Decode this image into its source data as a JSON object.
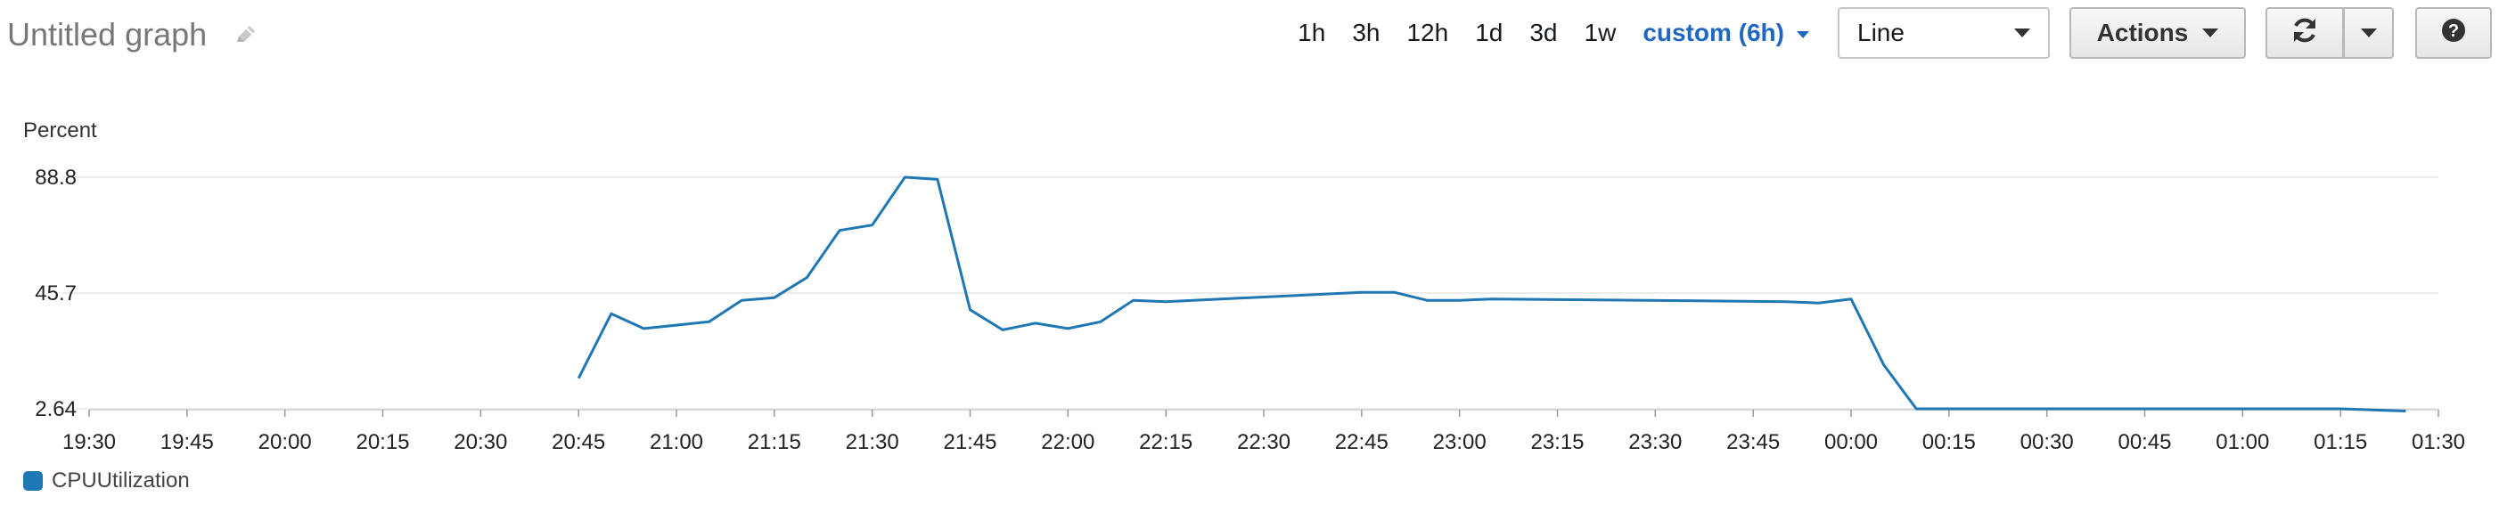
{
  "header": {
    "title": "Untitled graph",
    "edit_icon": "pencil-icon"
  },
  "toolbar": {
    "ranges": [
      "1h",
      "3h",
      "12h",
      "1d",
      "3d",
      "1w"
    ],
    "custom_range": "custom (6h)",
    "chart_type": "Line",
    "actions_label": "Actions",
    "refresh_icon": "refresh-icon",
    "help_icon": "question-icon"
  },
  "colors": {
    "series": "#1f77b4",
    "accent": "#1f67c2",
    "grid": "#e6e6e6"
  },
  "chart_data": {
    "type": "line",
    "ylabel": "Percent",
    "y_ticks": [
      2.64,
      45.7,
      88.8
    ],
    "ylim": [
      2.64,
      88.8
    ],
    "x_ticks": [
      "19:30",
      "19:45",
      "20:00",
      "20:15",
      "20:30",
      "20:45",
      "21:00",
      "21:15",
      "21:30",
      "21:45",
      "22:00",
      "22:15",
      "22:30",
      "22:45",
      "23:00",
      "23:15",
      "23:30",
      "23:45",
      "00:00",
      "00:15",
      "00:30",
      "00:45",
      "01:00",
      "01:15",
      "01:30"
    ],
    "xlim": [
      "19:30",
      "01:30"
    ],
    "grid": true,
    "legend": "bottom-left",
    "series": [
      {
        "name": "CPUUtilization",
        "x": [
          "20:45",
          "20:50",
          "20:55",
          "21:05",
          "21:10",
          "21:15",
          "21:20",
          "21:25",
          "21:30",
          "21:35",
          "21:40",
          "21:45",
          "21:50",
          "21:55",
          "22:00",
          "22:05",
          "22:10",
          "22:15",
          "22:45",
          "22:50",
          "22:55",
          "23:00",
          "23:05",
          "23:50",
          "23:55",
          "00:00",
          "00:05",
          "00:10",
          "01:15",
          "01:20",
          "01:25"
        ],
        "values": [
          14,
          38,
          32.5,
          35,
          43,
          44,
          51.5,
          69,
          71,
          88.8,
          88,
          39.5,
          32,
          34.5,
          32.5,
          35,
          43,
          42.5,
          46,
          46,
          43,
          43,
          43.5,
          42.5,
          42,
          43.5,
          19,
          2.64,
          2.64,
          2.2,
          1.8
        ]
      }
    ]
  }
}
